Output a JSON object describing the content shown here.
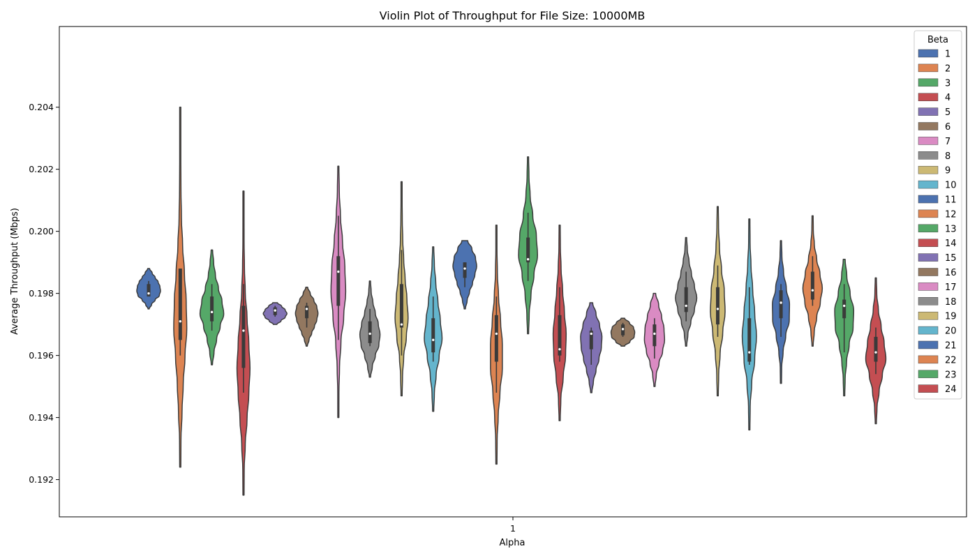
{
  "chart_data": {
    "type": "violin",
    "title": "Violin Plot of Throughput for File Size: 10000MB",
    "xlabel": "Alpha",
    "ylabel": "Average Throughput (Mbps)",
    "categories": [
      "1"
    ],
    "ylim": [
      0.1908,
      0.2066
    ],
    "yticks": [
      0.192,
      0.194,
      0.196,
      0.198,
      0.2,
      0.202,
      0.204
    ],
    "ytick_labels": [
      "0.192",
      "0.194",
      "0.196",
      "0.198",
      "0.200",
      "0.202",
      "0.204"
    ],
    "grid": false,
    "legend": {
      "title": "Beta",
      "placement": "top-right"
    },
    "palette": [
      "#4c72b0",
      "#dd8452",
      "#55a868",
      "#c44e52",
      "#8172b3",
      "#937860",
      "#da8bc3",
      "#8c8c8c",
      "#ccb974",
      "#64b5cd"
    ],
    "series": [
      {
        "name": "1",
        "color": "#4c72b0",
        "min": 0.1975,
        "max": 0.1988,
        "q1": 0.1979,
        "median": 0.198,
        "q3": 0.1983,
        "wlo": 0.19795,
        "whi": 0.1984,
        "shape": [
          0.05,
          0.25,
          0.55,
          0.9,
          1.0,
          0.95,
          0.8,
          0.55,
          0.3,
          0.08
        ]
      },
      {
        "name": "2",
        "color": "#dd8452",
        "min": 0.1924,
        "max": 0.204,
        "q1": 0.1965,
        "median": 0.1971,
        "q3": 0.1988,
        "wlo": 0.196,
        "whi": 0.1988,
        "shape": [
          0.02,
          0.06,
          0.15,
          0.25,
          0.4,
          0.55,
          0.5,
          0.35,
          0.2,
          0.1,
          0.06,
          0.04,
          0.03,
          0.02
        ]
      },
      {
        "name": "3",
        "color": "#55a868",
        "min": 0.1957,
        "max": 0.1994,
        "q1": 0.1971,
        "median": 0.1974,
        "q3": 0.1979,
        "wlo": 0.1968,
        "whi": 0.1983,
        "shape": [
          0.05,
          0.18,
          0.4,
          0.7,
          1.0,
          0.85,
          0.55,
          0.3,
          0.15,
          0.06
        ]
      },
      {
        "name": "4",
        "color": "#c44e52",
        "min": 0.1915,
        "max": 0.2013,
        "q1": 0.1956,
        "median": 0.1968,
        "q3": 0.1976,
        "wlo": 0.1948,
        "whi": 0.1983,
        "shape": [
          0.02,
          0.06,
          0.15,
          0.3,
          0.45,
          0.55,
          0.45,
          0.3,
          0.15,
          0.08,
          0.05,
          0.03,
          0.02
        ]
      },
      {
        "name": "5",
        "color": "#8172b3",
        "min": 0.197,
        "max": 0.1977,
        "q1": 0.1973,
        "median": 0.19745,
        "q3": 0.19755,
        "wlo": 0.19725,
        "whi": 0.1976,
        "shape": [
          0.15,
          0.5,
          0.85,
          1.0,
          0.85,
          0.55,
          0.2
        ]
      },
      {
        "name": "6",
        "color": "#937860",
        "min": 0.1963,
        "max": 0.1982,
        "q1": 0.1972,
        "median": 0.1975,
        "q3": 0.1976,
        "wlo": 0.1969,
        "whi": 0.1977,
        "shape": [
          0.05,
          0.2,
          0.42,
          0.65,
          0.85,
          0.95,
          0.85,
          0.6,
          0.3,
          0.08
        ]
      },
      {
        "name": "7",
        "color": "#da8bc3",
        "min": 0.194,
        "max": 0.2021,
        "q1": 0.1976,
        "median": 0.1987,
        "q3": 0.1992,
        "wlo": 0.1965,
        "whi": 0.2005,
        "shape": [
          0.02,
          0.05,
          0.1,
          0.22,
          0.45,
          0.62,
          0.55,
          0.35,
          0.18,
          0.08,
          0.03
        ]
      },
      {
        "name": "8",
        "color": "#8c8c8c",
        "min": 0.1953,
        "max": 0.1984,
        "q1": 0.1964,
        "median": 0.1967,
        "q3": 0.1971,
        "wlo": 0.1963,
        "whi": 0.1975,
        "shape": [
          0.05,
          0.2,
          0.45,
          0.75,
          0.85,
          0.7,
          0.45,
          0.25,
          0.1,
          0.04
        ]
      },
      {
        "name": "9",
        "color": "#ccb974",
        "min": 0.1947,
        "max": 0.2016,
        "q1": 0.1969,
        "median": 0.197,
        "q3": 0.1983,
        "wlo": 0.196,
        "whi": 0.1994,
        "shape": [
          0.03,
          0.08,
          0.18,
          0.4,
          0.55,
          0.45,
          0.3,
          0.18,
          0.1,
          0.06,
          0.03,
          0.02
        ]
      },
      {
        "name": "10",
        "color": "#64b5cd",
        "min": 0.1942,
        "max": 0.1995,
        "q1": 0.1961,
        "median": 0.1965,
        "q3": 0.1972,
        "wlo": 0.1958,
        "whi": 0.1979,
        "shape": [
          0.03,
          0.1,
          0.25,
          0.5,
          0.75,
          0.6,
          0.4,
          0.22,
          0.1,
          0.04
        ]
      },
      {
        "name": "11",
        "color": "#4c72b0",
        "min": 0.1975,
        "max": 0.1997,
        "q1": 0.1985,
        "median": 0.1988,
        "q3": 0.199,
        "wlo": 0.1982,
        "whi": 0.199,
        "shape": [
          0.05,
          0.2,
          0.4,
          0.65,
          0.85,
          1.0,
          0.9,
          0.6,
          0.25
        ]
      },
      {
        "name": "12",
        "color": "#dd8452",
        "min": 0.1925,
        "max": 0.2002,
        "q1": 0.1958,
        "median": 0.1967,
        "q3": 0.1973,
        "wlo": 0.1948,
        "whi": 0.1979,
        "shape": [
          0.02,
          0.06,
          0.15,
          0.3,
          0.5,
          0.5,
          0.35,
          0.18,
          0.08,
          0.04,
          0.02
        ]
      },
      {
        "name": "13",
        "color": "#55a868",
        "min": 0.1967,
        "max": 0.2024,
        "q1": 0.199,
        "median": 0.1991,
        "q3": 0.1998,
        "wlo": 0.1984,
        "whi": 0.2006,
        "shape": [
          0.03,
          0.1,
          0.25,
          0.5,
          0.8,
          0.7,
          0.4,
          0.18,
          0.08,
          0.03
        ]
      },
      {
        "name": "14",
        "color": "#c44e52",
        "min": 0.1939,
        "max": 0.2002,
        "q1": 0.196,
        "median": 0.1962,
        "q3": 0.1973,
        "wlo": 0.1958,
        "whi": 0.1982,
        "shape": [
          0.03,
          0.1,
          0.3,
          0.5,
          0.55,
          0.4,
          0.25,
          0.12,
          0.06,
          0.03
        ]
      },
      {
        "name": "15",
        "color": "#8172b3",
        "min": 0.1948,
        "max": 0.1977,
        "q1": 0.1962,
        "median": 0.1967,
        "q3": 0.1968,
        "wlo": 0.1957,
        "whi": 0.1969,
        "shape": [
          0.05,
          0.18,
          0.4,
          0.65,
          0.85,
          0.9,
          0.7,
          0.4,
          0.12
        ]
      },
      {
        "name": "16",
        "color": "#937860",
        "min": 0.1963,
        "max": 0.1972,
        "q1": 0.19665,
        "median": 0.19685,
        "q3": 0.197,
        "wlo": 0.1966,
        "whi": 0.19705,
        "shape": [
          0.15,
          0.6,
          0.95,
          1.0,
          0.9,
          0.55,
          0.15
        ]
      },
      {
        "name": "17",
        "color": "#da8bc3",
        "min": 0.195,
        "max": 0.198,
        "q1": 0.1963,
        "median": 0.1967,
        "q3": 0.197,
        "wlo": 0.1959,
        "whi": 0.1972,
        "shape": [
          0.04,
          0.15,
          0.38,
          0.68,
          0.85,
          0.8,
          0.6,
          0.35,
          0.1
        ]
      },
      {
        "name": "18",
        "color": "#8c8c8c",
        "min": 0.1963,
        "max": 0.1998,
        "q1": 0.1974,
        "median": 0.1976,
        "q3": 0.1982,
        "wlo": 0.1971,
        "whi": 0.1987,
        "shape": [
          0.04,
          0.15,
          0.4,
          0.7,
          0.9,
          0.7,
          0.45,
          0.25,
          0.1,
          0.03
        ]
      },
      {
        "name": "19",
        "color": "#ccb974",
        "min": 0.1947,
        "max": 0.2008,
        "q1": 0.197,
        "median": 0.1975,
        "q3": 0.1982,
        "wlo": 0.1966,
        "whi": 0.1989,
        "shape": [
          0.03,
          0.08,
          0.2,
          0.42,
          0.62,
          0.55,
          0.32,
          0.15,
          0.07,
          0.03
        ]
      },
      {
        "name": "20",
        "color": "#64b5cd",
        "min": 0.1936,
        "max": 0.2004,
        "q1": 0.1958,
        "median": 0.1961,
        "q3": 0.1972,
        "wlo": 0.1957,
        "whi": 0.1982,
        "shape": [
          0.02,
          0.07,
          0.2,
          0.45,
          0.6,
          0.45,
          0.28,
          0.14,
          0.06,
          0.03
        ]
      },
      {
        "name": "21",
        "color": "#4c72b0",
        "min": 0.1951,
        "max": 0.1997,
        "q1": 0.1972,
        "median": 0.1977,
        "q3": 0.1981,
        "wlo": 0.1966,
        "whi": 0.1983,
        "shape": [
          0.02,
          0.06,
          0.18,
          0.4,
          0.7,
          0.72,
          0.45,
          0.22,
          0.08,
          0.03
        ]
      },
      {
        "name": "22",
        "color": "#dd8452",
        "min": 0.1963,
        "max": 0.2005,
        "q1": 0.1978,
        "median": 0.1981,
        "q3": 0.1987,
        "wlo": 0.1976,
        "whi": 0.1992,
        "shape": [
          0.04,
          0.14,
          0.35,
          0.65,
          0.82,
          0.62,
          0.35,
          0.15,
          0.06,
          0.02
        ]
      },
      {
        "name": "23",
        "color": "#55a868",
        "min": 0.1947,
        "max": 0.1991,
        "q1": 0.1972,
        "median": 0.1976,
        "q3": 0.1978,
        "wlo": 0.1961,
        "whi": 0.1983,
        "shape": [
          0.03,
          0.08,
          0.2,
          0.42,
          0.75,
          0.8,
          0.5,
          0.22,
          0.08
        ]
      },
      {
        "name": "24",
        "color": "#c44e52",
        "min": 0.1938,
        "max": 0.1985,
        "q1": 0.1958,
        "median": 0.1961,
        "q3": 0.1966,
        "wlo": 0.1954,
        "whi": 0.1969,
        "shape": [
          0.03,
          0.1,
          0.28,
          0.55,
          0.85,
          0.7,
          0.45,
          0.22,
          0.08,
          0.02
        ]
      }
    ]
  }
}
